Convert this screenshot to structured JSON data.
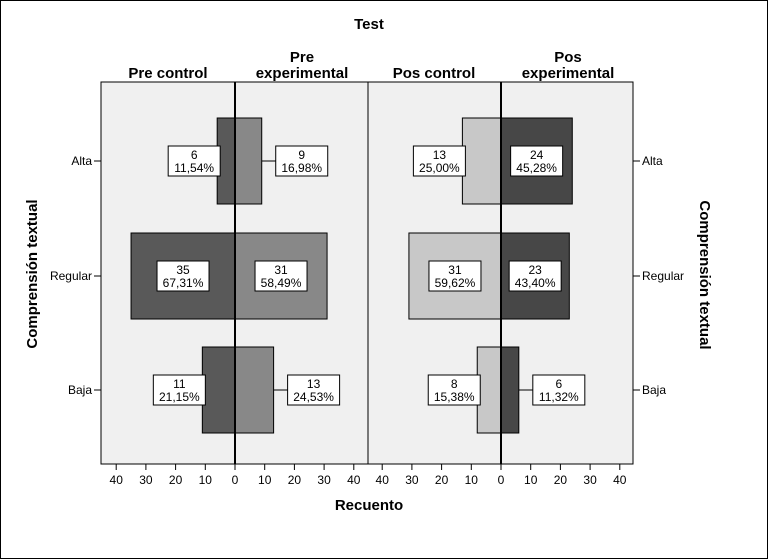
{
  "chart_data": {
    "type": "bar",
    "orientation": "horizontal-back-to-back",
    "title": "Test",
    "xlabel": "Recuento",
    "ylabel": "Comprensión textual",
    "ylabel_right": "Comprensión textual",
    "categories": [
      "Alta",
      "Regular",
      "Baja"
    ],
    "xlim": [
      0,
      40
    ],
    "x_ticks": [
      "40",
      "30",
      "20",
      "10",
      "0",
      "10",
      "20",
      "30",
      "40"
    ],
    "grid": false,
    "colors": {
      "pre_control": "#595959",
      "pre_experimental": "#888888",
      "pos_control": "#c8c8c8",
      "pos_experimental": "#474747",
      "plot_bg": "#f0f0f0"
    },
    "series": [
      {
        "name": "Pre control",
        "values": [
          6,
          35,
          11
        ],
        "labels": [
          "11,54%",
          "67,31%",
          "21,15%"
        ]
      },
      {
        "name": "Pre experimental",
        "values": [
          9,
          31,
          13
        ],
        "labels": [
          "16,98%",
          "58,49%",
          "24,53%"
        ]
      },
      {
        "name": "Pos control",
        "values": [
          13,
          31,
          8
        ],
        "labels": [
          "25,00%",
          "59,62%",
          "15,38%"
        ]
      },
      {
        "name": "Pos experimental",
        "values": [
          24,
          23,
          6
        ],
        "labels": [
          "45,28%",
          "43,40%",
          "11,32%"
        ]
      }
    ]
  }
}
